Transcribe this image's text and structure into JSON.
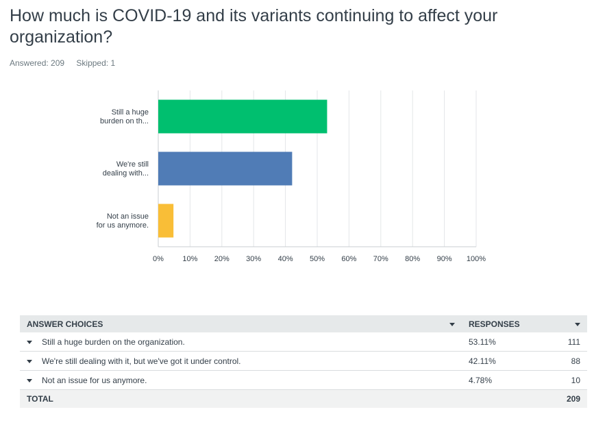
{
  "question": {
    "title": "How much is COVID-19 and its variants continuing to affect your organization?"
  },
  "meta": {
    "answered": "Answered: 209",
    "skipped": "Skipped: 1"
  },
  "chart_data": {
    "type": "bar",
    "orientation": "horizontal",
    "categories": [
      [
        "Still a huge",
        "burden on th..."
      ],
      [
        "We're still",
        "dealing with..."
      ],
      [
        "Not an issue",
        "for us anymore."
      ]
    ],
    "values": [
      53.11,
      42.11,
      4.78
    ],
    "colors": [
      "#00bf6f",
      "#507cb6",
      "#f9be37"
    ],
    "xlim": [
      0,
      100
    ],
    "xticks": [
      "0%",
      "10%",
      "20%",
      "30%",
      "40%",
      "50%",
      "60%",
      "70%",
      "80%",
      "90%",
      "100%"
    ],
    "grid": true
  },
  "table": {
    "headers": {
      "choices": "ANSWER CHOICES",
      "responses": "RESPONSES"
    },
    "rows": [
      {
        "label": "Still a huge burden on the organization.",
        "percent": "53.11%",
        "count": "111"
      },
      {
        "label": "We're still dealing with it, but we've got it under control.",
        "percent": "42.11%",
        "count": "88"
      },
      {
        "label": "Not an issue for us anymore.",
        "percent": "4.78%",
        "count": "10"
      }
    ],
    "total": {
      "label": "TOTAL",
      "count": "209"
    }
  }
}
